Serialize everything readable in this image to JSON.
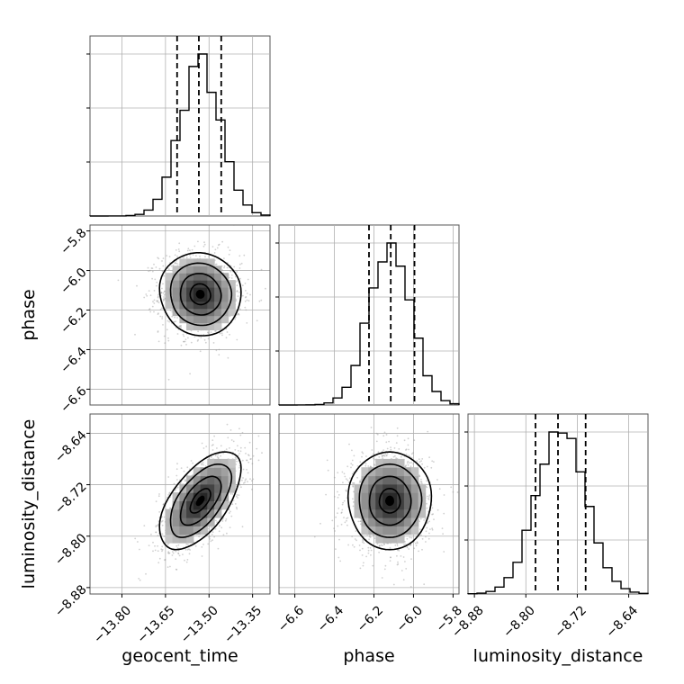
{
  "chart_data": {
    "type": "corner",
    "parameters": [
      "geocent_time",
      "phase",
      "luminosity_distance"
    ],
    "axis_labels": {
      "geocent_time": "geocent_time",
      "phase": "phase",
      "luminosity_distance": "luminosity_distance"
    },
    "ranges": {
      "geocent_time": [
        -13.91,
        -13.29
      ],
      "phase": [
        -6.68,
        -5.77
      ],
      "luminosity_distance": [
        -8.89,
        -8.61
      ]
    },
    "ticks": {
      "geocent_time": [
        -13.8,
        -13.65,
        -13.5,
        -13.35
      ],
      "phase": [
        -6.6,
        -6.4,
        -6.2,
        -6.0,
        -5.8
      ],
      "luminosity_distance": [
        -8.88,
        -8.8,
        -8.72,
        -8.64
      ]
    },
    "tick_labels": {
      "geocent_time": [
        "−13.80",
        "−13.65",
        "−13.50",
        "−13.35"
      ],
      "phase": [
        "−6.6",
        "−6.4",
        "−6.2",
        "−6.0",
        "−5.8"
      ],
      "luminosity_distance": [
        "−8.88",
        "−8.80",
        "−8.72",
        "−8.64"
      ]
    },
    "quantiles": {
      "geocent_time": [
        -13.61,
        -13.535,
        -13.458
      ],
      "phase": [
        -6.225,
        -6.115,
        -5.995
      ],
      "luminosity_distance": [
        -8.785,
        -8.75,
        -8.707
      ]
    },
    "means": {
      "geocent_time": -13.53,
      "phase": -6.12,
      "luminosity_distance": -8.745
    },
    "sigmas": {
      "geocent_time": 0.07,
      "phase": 0.105,
      "luminosity_distance": 0.038
    },
    "correlations": {
      "geocent_time|phase": -0.05,
      "geocent_time|luminosity_distance": 0.6,
      "phase|luminosity_distance": 0.0
    },
    "grid": true,
    "contours": true,
    "diagonal": "histogram"
  }
}
